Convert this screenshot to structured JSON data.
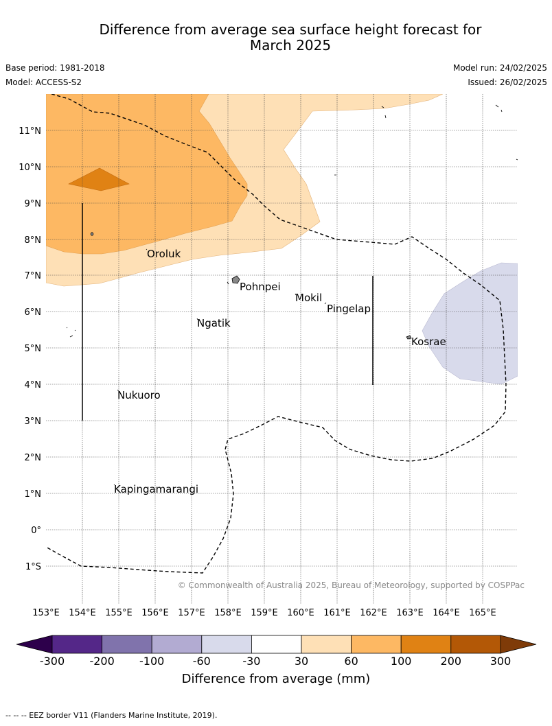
{
  "title": {
    "line1": "Difference from average sea surface height forecast for",
    "line2": "March 2025"
  },
  "meta": {
    "base_period": "Base period: 1981-2018",
    "model": "Model: ACCESS-S2",
    "model_run": "Model run: 24/02/2025",
    "issued": "Issued: 26/02/2025"
  },
  "map": {
    "lon_labels": [
      "153°E",
      "154°E",
      "155°E",
      "156°E",
      "157°E",
      "158°E",
      "159°E",
      "160°E",
      "161°E",
      "162°E",
      "163°E",
      "164°E",
      "165°E"
    ],
    "lat_labels": [
      "11°N",
      "10°N",
      "9°N",
      "8°N",
      "7°N",
      "6°N",
      "5°N",
      "4°N",
      "3°N",
      "2°N",
      "1°N",
      "0°",
      "1°S"
    ],
    "places": [
      "Oroluk",
      "Pohnpei",
      "Mokil",
      "Pingelap",
      "Ngatik",
      "Kosrae",
      "Nukuoro",
      "Kapingamarangi"
    ],
    "copyright": "© Commonwealth of Australia 2025, Bureau of Meteorology, supported by COSPPac"
  },
  "colorbar": {
    "ticks": [
      "-300",
      "-200",
      "-100",
      "-60",
      "-30",
      "30",
      "60",
      "100",
      "200",
      "300"
    ],
    "label": "Difference from average (mm)",
    "colors": [
      "#2d004b",
      "#542788",
      "#8073ac",
      "#b2abd2",
      "#d8daeb",
      "#ffffff",
      "#fee0b6",
      "#fdb863",
      "#e08214",
      "#b35806",
      "#7f3b08"
    ]
  },
  "footnote": "--  --  -- EEZ border V11 (Flanders Marine Institute, 2019)."
}
